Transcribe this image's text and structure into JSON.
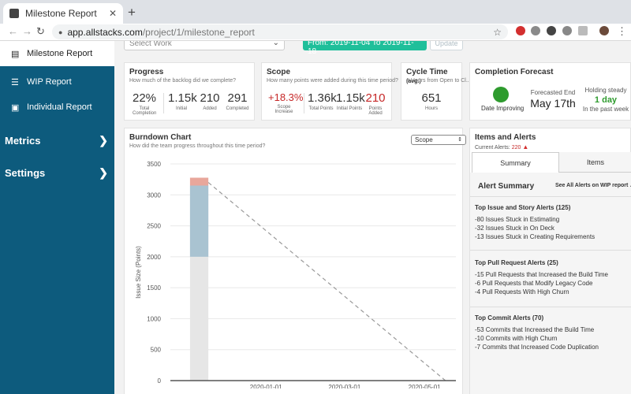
{
  "browser": {
    "tab_title": "Milestone Report",
    "close_glyph": "✕",
    "new_tab_glyph": "+",
    "url_host": "app.allstacks.com",
    "url_path": "/project/1/milestone_report"
  },
  "sidebar": {
    "active_item": {
      "label": "Milestone Report",
      "icon": "chart-icon"
    },
    "items": [
      {
        "label": "WIP Report",
        "icon": "list-icon"
      },
      {
        "label": "Individual Report",
        "icon": "id-card-icon"
      }
    ],
    "sections": [
      {
        "label": "Metrics",
        "icon": "chevron-right-icon"
      },
      {
        "label": "Settings",
        "icon": "chevron-right-icon"
      }
    ]
  },
  "filters": {
    "select_work_placeholder": "Select Work",
    "date_range": "From: 2019-11-04 To 2019-11-18",
    "update_label": "Update"
  },
  "progress": {
    "title": "Progress",
    "subtitle": "How much of the backlog did we complete?",
    "stats": [
      {
        "value": "22%",
        "label": "Total Completion"
      },
      {
        "value": "1.15k",
        "label": "Initial"
      },
      {
        "value": "210",
        "label": "Added"
      },
      {
        "value": "291",
        "label": "Completed"
      }
    ]
  },
  "scope": {
    "title": "Scope",
    "subtitle": "How many points were added during this time period?",
    "stats": [
      {
        "value": "+18.3%",
        "label": "Scope Increase",
        "red": true
      },
      {
        "value": "1.36k",
        "label": "Total Points",
        "red": false
      },
      {
        "value": "1.15k",
        "label": "Initial Points",
        "red": false
      },
      {
        "value": "210",
        "label": "Points Added",
        "red": true
      }
    ]
  },
  "cycle": {
    "title": "Cycle Time",
    "title_suffix": "(avg.)",
    "subtitle": "# Hours from Open to Cl...",
    "value": "651",
    "label": "Hours"
  },
  "forecast": {
    "title": "Completion Forecast",
    "status": "Date Improving",
    "status_color": "#2e9b2e",
    "forecast_label": "Forecasted End",
    "forecast_date": "May 17th",
    "holding_label": "Holding steady",
    "holding_value": "1 day",
    "holding_suffix": "In the past week"
  },
  "burndown": {
    "title": "Burndown Chart",
    "subtitle": "How did the team progress throughout this time period?",
    "scope_select": "Scope"
  },
  "chart_data": {
    "type": "area",
    "ylabel": "Issue Size (Points)",
    "xlabel": "",
    "ylim": [
      0,
      3500
    ],
    "yticks": [
      0,
      500,
      1000,
      1500,
      2000,
      2500,
      3000,
      3500
    ],
    "xticks": [
      "2020-01-01",
      "2020-03-01",
      "2020-05-01"
    ],
    "grid": true,
    "series": [
      {
        "x": [
          "2019-11-04",
          "2019-11-18"
        ],
        "values": [
          3150,
          3150
        ]
      },
      {
        "x": [
          "2019-11-04",
          "2019-11-18"
        ],
        "values": [
          2000,
          2000
        ]
      },
      {
        "x": [
          "2019-11-18",
          "2020-05-17"
        ],
        "values": [
          3200,
          0
        ],
        "style": "dashed"
      }
    ]
  },
  "alerts": {
    "title": "Items and Alerts",
    "current_label": "Current Alerts:",
    "current_count": "220",
    "warn_glyph": "▲",
    "tabs": [
      "Summary",
      "Items"
    ],
    "summary_title": "Alert Summary",
    "see_all": "See All Alerts on WIP report",
    "groups": [
      {
        "title": "Top Issue and Story Alerts (125)",
        "items": [
          "-80 Issues Stuck in Estimating",
          "-32 Issues Stuck in On Deck",
          "-13 Issues Stuck in Creating Requirements"
        ]
      },
      {
        "title": "Top Pull Request Alerts (25)",
        "items": [
          "-15 Pull Requests that Increased the Build Time",
          "-6 Pull Requests that Modify Legacy Code",
          "-4 Pull Requests With High Churn"
        ]
      },
      {
        "title": "Top Commit Alerts (70)",
        "items": [
          "-53 Commits that Increased the Build Time",
          "-10 Commits with High Churn",
          "-7 Commits that Increased Code Duplication"
        ]
      }
    ]
  }
}
